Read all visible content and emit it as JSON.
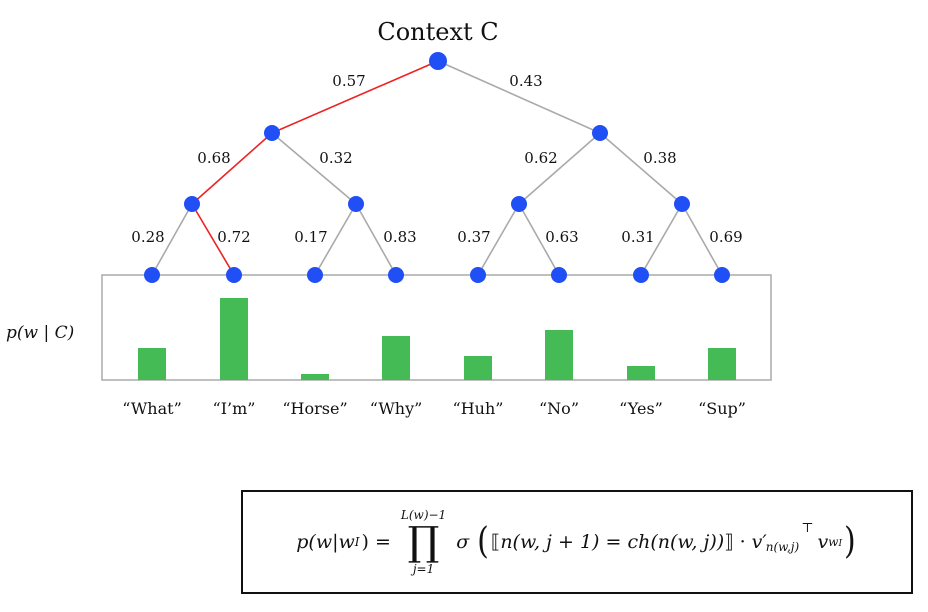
{
  "title": "Context C",
  "y_axis_label": "p(w | C)",
  "colors": {
    "node": "#1f4ff5",
    "edge": "#aaaaaa",
    "path": "#ee2222",
    "bar": "#44bb55",
    "frame": "#aaaaaa"
  },
  "tree": {
    "edges": [
      {
        "id": "e-root-l",
        "label": "0.57",
        "highlighted": true
      },
      {
        "id": "e-root-r",
        "label": "0.43",
        "highlighted": false
      },
      {
        "id": "e-l-ll",
        "label": "0.68",
        "highlighted": true
      },
      {
        "id": "e-l-lr",
        "label": "0.32",
        "highlighted": false
      },
      {
        "id": "e-r-rl",
        "label": "0.62",
        "highlighted": false
      },
      {
        "id": "e-r-rr",
        "label": "0.38",
        "highlighted": false
      },
      {
        "id": "e-ll-what",
        "label": "0.28",
        "highlighted": false
      },
      {
        "id": "e-ll-im",
        "label": "0.72",
        "highlighted": true
      },
      {
        "id": "e-lr-horse",
        "label": "0.17",
        "highlighted": false
      },
      {
        "id": "e-lr-why",
        "label": "0.83",
        "highlighted": false
      },
      {
        "id": "e-rl-huh",
        "label": "0.37",
        "highlighted": false
      },
      {
        "id": "e-rl-no",
        "label": "0.63",
        "highlighted": false
      },
      {
        "id": "e-rr-yes",
        "label": "0.31",
        "highlighted": false
      },
      {
        "id": "e-rr-sup",
        "label": "0.69",
        "highlighted": false
      }
    ]
  },
  "chart_data": {
    "type": "bar",
    "categories": [
      "“What”",
      "“I’m”",
      "“Horse”",
      "“Why”",
      "“Huh”",
      "“No”",
      "“Yes”",
      "“Sup”"
    ],
    "values": [
      0.16,
      0.41,
      0.03,
      0.22,
      0.12,
      0.25,
      0.07,
      0.16
    ],
    "ylabel": "p(w | C)",
    "ylim": [
      0,
      0.5
    ]
  },
  "formula": {
    "lhs": "p(w|w",
    "lhs_sub": "I",
    "lhs_close": ") =",
    "prod_upper": "L(w)−1",
    "prod_symbol": "∏",
    "prod_lower": "j=1",
    "sigma": "σ",
    "bracket_open": "⟦",
    "inner": "n(w, j + 1) = ch(n(w, j))",
    "bracket_close": "⟧",
    "dot": "·",
    "vprime": "v′",
    "vprime_sub": "n(w,j)",
    "transpose": "⊤",
    "v": "v",
    "v_sub": "w",
    "v_subsub": "I"
  }
}
